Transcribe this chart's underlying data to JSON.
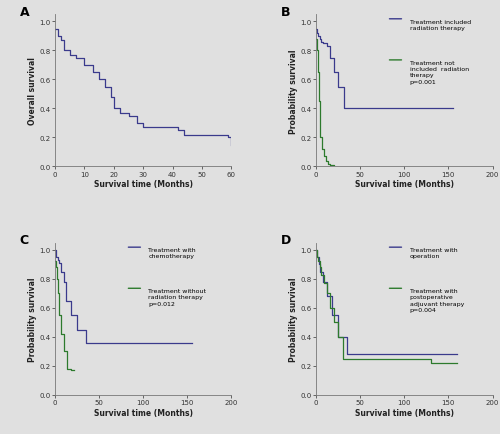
{
  "bg_color": "#e0e0e0",
  "line_color_blue": "#3a3a8c",
  "line_color_green": "#2d7a2d",
  "panel_A": {
    "label": "A",
    "ylabel": "Overall survival",
    "xlabel": "Survival time (Months)",
    "xlim": [
      0,
      60
    ],
    "ylim": [
      0.0,
      1.05
    ],
    "xticks": [
      0,
      10,
      20,
      30,
      40,
      50,
      60
    ],
    "yticks": [
      0.0,
      0.2,
      0.4,
      0.6,
      0.8,
      1.0
    ],
    "curve": {
      "times": [
        0,
        1,
        2,
        3,
        5,
        7,
        10,
        13,
        15,
        17,
        19,
        20,
        22,
        25,
        28,
        30,
        42,
        44,
        59,
        60
      ],
      "surv": [
        0.95,
        0.9,
        0.87,
        0.8,
        0.77,
        0.75,
        0.7,
        0.65,
        0.6,
        0.55,
        0.48,
        0.4,
        0.37,
        0.35,
        0.3,
        0.27,
        0.25,
        0.22,
        0.2,
        0.15
      ]
    }
  },
  "panel_B": {
    "label": "B",
    "ylabel": "Probability survival",
    "xlabel": "Survival time (Months)",
    "xlim": [
      0,
      200
    ],
    "ylim": [
      0.0,
      1.05
    ],
    "xticks": [
      0,
      50,
      100,
      150,
      200
    ],
    "yticks": [
      0.0,
      0.2,
      0.4,
      0.6,
      0.8,
      1.0
    ],
    "legend_lines": [
      {
        "text": "Treatment included\nradiation therapy",
        "color": "blue"
      },
      {
        "text": "Treatment not\nincluded  radiation\ntherapy\np=0.001",
        "color": "green"
      }
    ],
    "curve_blue": {
      "times": [
        0,
        1,
        2,
        4,
        6,
        8,
        12,
        16,
        20,
        25,
        32,
        130,
        155
      ],
      "surv": [
        0.95,
        0.92,
        0.9,
        0.88,
        0.86,
        0.85,
        0.83,
        0.75,
        0.65,
        0.55,
        0.4,
        0.4,
        0.4
      ]
    },
    "curve_green": {
      "times": [
        0,
        1,
        2,
        3,
        4,
        5,
        7,
        9,
        11,
        13,
        16,
        20
      ],
      "surv": [
        0.88,
        0.8,
        0.65,
        0.45,
        0.3,
        0.2,
        0.12,
        0.07,
        0.04,
        0.02,
        0.01,
        0.0
      ]
    }
  },
  "panel_C": {
    "label": "C",
    "ylabel": "Probability survival",
    "xlabel": "Survival time (Months)",
    "xlim": [
      0,
      200
    ],
    "ylim": [
      0.0,
      1.05
    ],
    "xticks": [
      0,
      50,
      100,
      150,
      200
    ],
    "yticks": [
      0.0,
      0.2,
      0.4,
      0.6,
      0.8,
      1.0
    ],
    "legend_lines": [
      {
        "text": "Treatment with\nchemotherapy",
        "color": "blue"
      },
      {
        "text": "Treatment without\nradiation therapy\np=0.012",
        "color": "green"
      }
    ],
    "curve_blue": {
      "times": [
        0,
        1,
        3,
        5,
        7,
        10,
        13,
        18,
        25,
        35,
        130,
        155
      ],
      "surv": [
        1.0,
        0.95,
        0.93,
        0.91,
        0.85,
        0.78,
        0.65,
        0.55,
        0.45,
        0.36,
        0.36,
        0.36
      ]
    },
    "curve_green": {
      "times": [
        0,
        1,
        2,
        3,
        5,
        7,
        10,
        14,
        18,
        22
      ],
      "surv": [
        0.92,
        0.88,
        0.8,
        0.7,
        0.55,
        0.42,
        0.3,
        0.18,
        0.17,
        0.17
      ]
    }
  },
  "panel_D": {
    "label": "D",
    "ylabel": "Probability survival",
    "xlabel": "Survival time (Months)",
    "xlim": [
      0,
      200
    ],
    "ylim": [
      0.0,
      1.05
    ],
    "xticks": [
      0,
      50,
      100,
      150,
      200
    ],
    "yticks": [
      0.0,
      0.2,
      0.4,
      0.6,
      0.8,
      1.0
    ],
    "legend_lines": [
      {
        "text": "Treatment with\noperation",
        "color": "blue"
      },
      {
        "text": "Treatment with\npostoperative\nadjuvant therapy\np=0.004",
        "color": "green"
      }
    ],
    "curve_blue": {
      "times": [
        0,
        1,
        3,
        5,
        8,
        12,
        18,
        25,
        35,
        130,
        160
      ],
      "surv": [
        1.0,
        0.95,
        0.9,
        0.85,
        0.78,
        0.68,
        0.55,
        0.4,
        0.28,
        0.28,
        0.28
      ]
    },
    "curve_green": {
      "times": [
        0,
        1,
        2,
        4,
        6,
        9,
        12,
        16,
        20,
        25,
        30,
        130,
        160
      ],
      "surv": [
        1.0,
        0.95,
        0.92,
        0.88,
        0.83,
        0.77,
        0.7,
        0.6,
        0.5,
        0.4,
        0.25,
        0.22,
        0.22
      ]
    }
  }
}
